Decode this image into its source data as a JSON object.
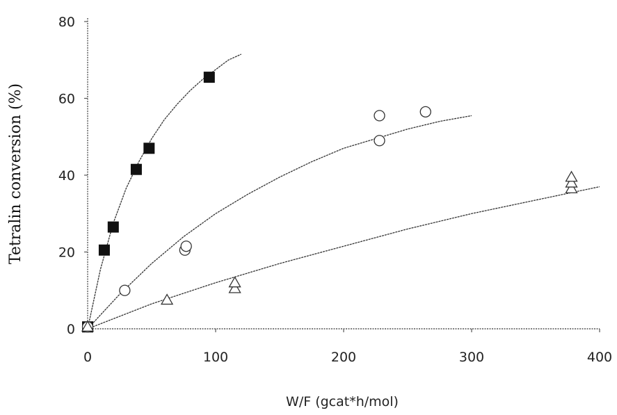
{
  "chart_data": {
    "type": "scatter",
    "title": "",
    "xlabel": "W/F (gcat*h/mol)",
    "ylabel": "Tetralin conversion (%)",
    "xlim": [
      0,
      400
    ],
    "ylim": [
      0,
      80
    ],
    "x_ticks": [
      "0",
      "100",
      "200",
      "300",
      "400"
    ],
    "y_ticks": [
      "0",
      "20",
      "40",
      "60",
      "80"
    ],
    "grid": false,
    "legend": "none",
    "series": [
      {
        "marker": "filled-square",
        "color": "#111111",
        "points": [
          [
            0,
            0.5
          ],
          [
            13,
            20.5
          ],
          [
            20,
            26.5
          ],
          [
            38,
            41.5
          ],
          [
            48,
            47
          ],
          [
            95,
            65.5
          ]
        ],
        "fit": [
          [
            0,
            0
          ],
          [
            10,
            15.5
          ],
          [
            20,
            27.5
          ],
          [
            30,
            36.5
          ],
          [
            40,
            43.5
          ],
          [
            50,
            49.5
          ],
          [
            60,
            54.5
          ],
          [
            70,
            58.5
          ],
          [
            80,
            62
          ],
          [
            90,
            65
          ],
          [
            100,
            67.5
          ],
          [
            110,
            70
          ],
          [
            120,
            71.5
          ]
        ]
      },
      {
        "marker": "open-circle",
        "color": "#333333",
        "points": [
          [
            0,
            0.5
          ],
          [
            29,
            10
          ],
          [
            76,
            20.5
          ],
          [
            77,
            21.5
          ],
          [
            228,
            49
          ],
          [
            228,
            55.5
          ],
          [
            264,
            56.5
          ]
        ],
        "fit": [
          [
            0,
            0
          ],
          [
            25,
            9
          ],
          [
            50,
            17
          ],
          [
            75,
            24
          ],
          [
            100,
            30
          ],
          [
            125,
            35
          ],
          [
            150,
            39.5
          ],
          [
            175,
            43.5
          ],
          [
            200,
            47
          ],
          [
            225,
            49.5
          ],
          [
            250,
            52
          ],
          [
            275,
            54
          ],
          [
            300,
            55.5
          ]
        ]
      },
      {
        "marker": "open-triangle",
        "color": "#333333",
        "points": [
          [
            0,
            0.5
          ],
          [
            62,
            7.5
          ],
          [
            115,
            10.5
          ],
          [
            115,
            12
          ],
          [
            378,
            36.5
          ],
          [
            378,
            38
          ],
          [
            378,
            39.5
          ]
        ],
        "fit": [
          [
            0,
            0
          ],
          [
            50,
            6.5
          ],
          [
            100,
            12
          ],
          [
            150,
            17
          ],
          [
            200,
            21.5
          ],
          [
            250,
            26
          ],
          [
            300,
            30
          ],
          [
            350,
            33.5
          ],
          [
            400,
            37
          ]
        ]
      }
    ]
  }
}
